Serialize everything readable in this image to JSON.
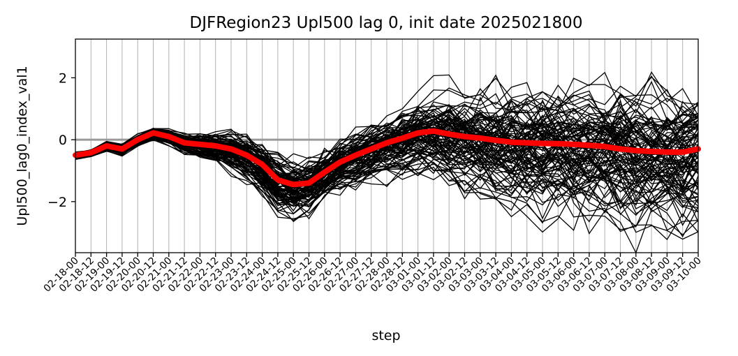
{
  "chart_data": {
    "type": "line",
    "title": "DJFRegion23 Upl500 lag 0, init date 2025021800",
    "xlabel": "step",
    "ylabel": "Upl500_lag0_index_val1",
    "categories": [
      "02-18-00",
      "02-18-12",
      "02-19-00",
      "02-19-12",
      "02-20-00",
      "02-20-12",
      "02-21-00",
      "02-21-12",
      "02-22-00",
      "02-22-12",
      "02-23-00",
      "02-23-12",
      "02-24-00",
      "02-24-12",
      "02-25-00",
      "02-25-12",
      "02-26-00",
      "02-26-12",
      "02-27-00",
      "02-27-12",
      "02-28-00",
      "02-28-12",
      "03-01-00",
      "03-01-12",
      "03-02-00",
      "03-02-12",
      "03-03-00",
      "03-03-12",
      "03-04-00",
      "03-04-12",
      "03-05-00",
      "03-05-12",
      "03-06-00",
      "03-06-12",
      "03-07-00",
      "03-07-12",
      "03-08-00",
      "03-08-12",
      "03-09-00",
      "03-09-12",
      "03-10-00"
    ],
    "yticks": [
      -2,
      0,
      2
    ],
    "ylim": [
      -3.65,
      3.25
    ],
    "grid": "vertical",
    "zero_line_color": "#999999",
    "ensemble_color": "#000000",
    "ensemble_members": 100,
    "mean_color": "#ff0000",
    "ensemble_mean": [
      -0.5,
      -0.42,
      -0.2,
      -0.3,
      0.0,
      0.22,
      0.1,
      -0.1,
      -0.15,
      -0.2,
      -0.3,
      -0.5,
      -0.8,
      -1.3,
      -1.45,
      -1.4,
      -1.05,
      -0.72,
      -0.5,
      -0.3,
      -0.1,
      0.05,
      0.22,
      0.28,
      0.18,
      0.1,
      0.05,
      -0.02,
      -0.08,
      -0.1,
      -0.12,
      -0.13,
      -0.15,
      -0.18,
      -0.22,
      -0.3,
      -0.35,
      -0.38,
      -0.4,
      -0.4,
      -0.3
    ],
    "spread": [
      0.05,
      0.06,
      0.08,
      0.1,
      0.1,
      0.1,
      0.12,
      0.18,
      0.22,
      0.28,
      0.35,
      0.42,
      0.5,
      0.55,
      0.55,
      0.52,
      0.5,
      0.5,
      0.52,
      0.55,
      0.6,
      0.65,
      0.72,
      0.78,
      0.85,
      0.9,
      0.95,
      1.0,
      1.02,
      1.05,
      1.08,
      1.1,
      1.12,
      1.15,
      1.15,
      1.18,
      1.2,
      1.22,
      1.25,
      1.25,
      1.25
    ]
  }
}
